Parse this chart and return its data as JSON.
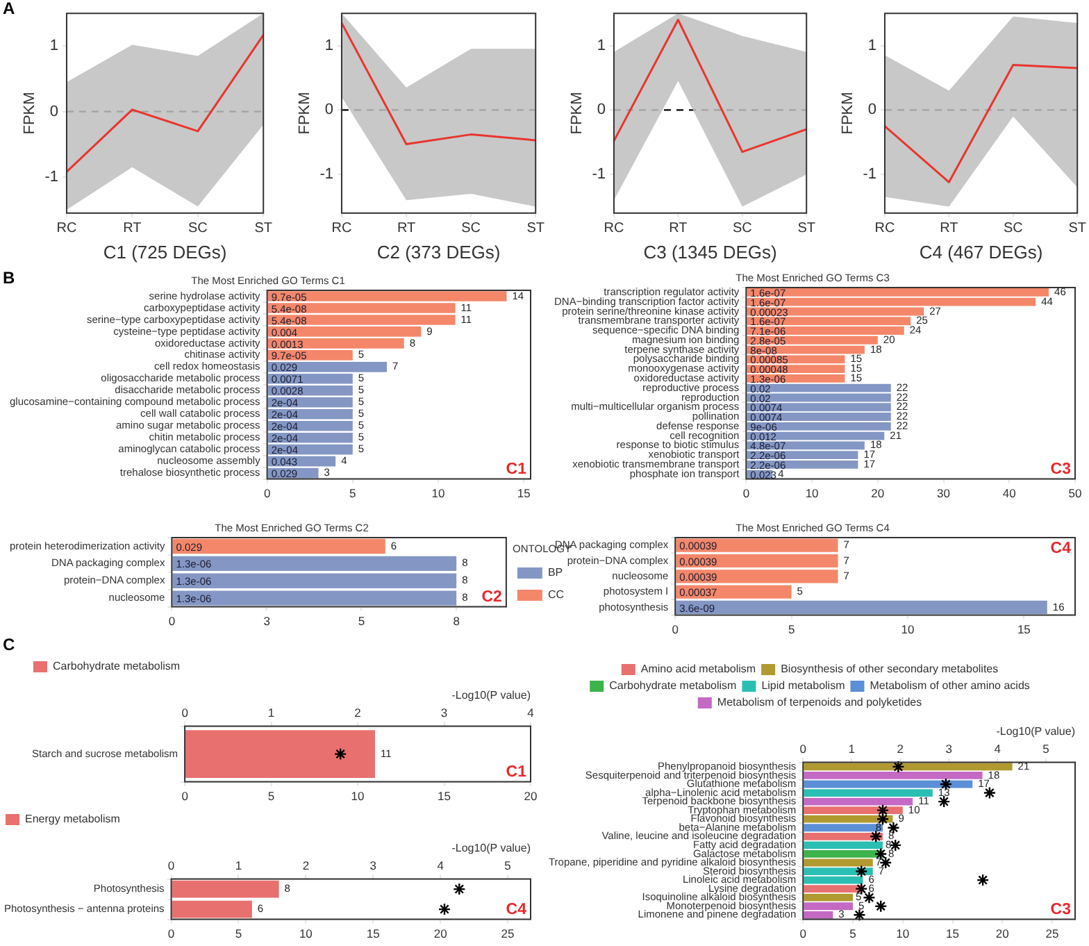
{
  "chart_data": [
    {
      "type": "line",
      "xlabel": "C1 (725 DEGs)",
      "ylabel": "FPKM",
      "categories": [
        "RC",
        "RT",
        "SC",
        "ST"
      ],
      "ylim": [
        -1.55,
        1.5
      ],
      "yticks": [
        -1,
        0,
        1
      ],
      "annotations": [
        "A"
      ],
      "ref_lines": [
        {
          "axis": "y",
          "value": 0,
          "line_style": "dashed",
          "color": "#000000"
        }
      ],
      "series": [
        {
          "color": "#e8352e",
          "values": [
            -0.92,
            0.03,
            -0.3,
            1.17
          ],
          "lower": [
            -1.5,
            -0.85,
            -1.45,
            -0.2
          ],
          "upper": [
            0.45,
            1.02,
            0.85,
            1.5
          ]
        }
      ]
    },
    {
      "type": "line",
      "xlabel": "C2 (373 DEGs)",
      "ylabel": "FPKM",
      "categories": [
        "RC",
        "RT",
        "SC",
        "ST"
      ],
      "ylim": [
        -1.6,
        1.5
      ],
      "yticks": [
        -1,
        0,
        1
      ],
      "ref_lines": [
        {
          "axis": "y",
          "value": 0,
          "line_style": "dashed",
          "color": "#000000"
        }
      ],
      "series": [
        {
          "color": "#e8352e",
          "values": [
            1.35,
            -0.53,
            -0.38,
            -0.47
          ],
          "lower": [
            0.2,
            -1.4,
            -1.3,
            -1.5
          ],
          "upper": [
            1.5,
            0.35,
            0.95,
            0.95
          ]
        }
      ]
    },
    {
      "type": "line",
      "xlabel": "C3 (1345 DEGs)",
      "ylabel": "FPKM",
      "categories": [
        "RC",
        "RT",
        "SC",
        "ST"
      ],
      "ylim": [
        -1.6,
        1.5
      ],
      "yticks": [
        -1,
        0,
        1
      ],
      "ref_lines": [
        {
          "axis": "y",
          "value": 0,
          "line_style": "dashed",
          "color": "#000000"
        }
      ],
      "series": [
        {
          "color": "#e8352e",
          "values": [
            -0.48,
            1.4,
            -0.65,
            -0.3
          ],
          "lower": [
            -1.4,
            0.45,
            -1.5,
            -1.0
          ],
          "upper": [
            0.9,
            1.5,
            1.15,
            0.9
          ]
        }
      ]
    },
    {
      "type": "line",
      "xlabel": "C4 (467 DEGs)",
      "ylabel": "FPKM",
      "categories": [
        "RC",
        "RT",
        "SC",
        "ST"
      ],
      "ylim": [
        -1.6,
        1.5
      ],
      "yticks": [
        -1,
        0,
        1
      ],
      "ref_lines": [
        {
          "axis": "y",
          "value": 0,
          "line_style": "dashed",
          "color": "#000000"
        }
      ],
      "series": [
        {
          "color": "#e8352e",
          "values": [
            -0.25,
            -1.12,
            0.7,
            0.65
          ],
          "lower": [
            -1.35,
            -1.5,
            -0.1,
            -1.2
          ],
          "upper": [
            0.85,
            0.3,
            1.45,
            1.35
          ]
        }
      ]
    },
    {
      "type": "bar",
      "orientation": "horizontal",
      "title": "The Most Enriched GO Terms C1",
      "data_labels": true,
      "xlim": [
        0,
        15.4
      ],
      "xticks": [
        0,
        5,
        10,
        15
      ],
      "categories": [
        "serine hydrolase activity",
        "carboxypeptidase activity",
        "serine−type carboxypeptidase activity",
        "cysteine−type peptidase activity",
        "oxidoreductase activity",
        "chitinase activity",
        "cell redox homeostasis",
        "oligosaccharide metabolic process",
        "disaccharide metabolic process",
        "glucosamine−containing compound metabolic process",
        "cell wall catabolic process",
        "amino sugar metabolic process",
        "chitin metabolic process",
        "aminoglycan catabolic process",
        "nucleosome assembly",
        "trehalose biosynthetic process"
      ],
      "series": [
        {
          "color": "#8497c4",
          "values": [
            null,
            null,
            null,
            null,
            null,
            null,
            7,
            5,
            5,
            5,
            5,
            5,
            5,
            5,
            4,
            3
          ]
        },
        {
          "color": "#f4876a",
          "values": [
            14,
            11,
            11,
            9,
            8,
            5,
            null,
            null,
            null,
            null,
            null,
            null,
            null,
            null,
            null,
            null
          ]
        }
      ],
      "annotations": [
        "B",
        "C1",
        "9.7e-05",
        "5.4e-08",
        "5.4e-08",
        "0.004",
        "0.0013",
        "9.7e-05",
        "0.029",
        "0.0071",
        "0.0028",
        "2e-04",
        "2e-04",
        "2e-04",
        "2e-04",
        "2e-04",
        "0.043",
        "0.029"
      ]
    },
    {
      "type": "bar",
      "orientation": "horizontal",
      "title": "The Most Enriched GO Terms C3",
      "data_labels": true,
      "xlim": [
        0,
        50
      ],
      "xticks": [
        0,
        10,
        20,
        30,
        40,
        50
      ],
      "categories": [
        "transcription regulator activity",
        "DNA−binding transcription factor activity",
        "protein serine/threonine kinase activity",
        "transmembrane transporter activity",
        "sequence−specific DNA binding",
        "magnesium ion binding",
        "terpene synthase activity",
        "polysaccharide binding",
        "monooxygenase activity",
        "oxidoreductase activity",
        "reproductive process",
        "reproduction",
        "multi−multicellular organism process",
        "pollination",
        "defense response",
        "cell recognition",
        "response to biotic stimulus",
        "xenobiotic transport",
        "xenobiotic transmembrane transport",
        "phosphate ion transport"
      ],
      "series": [
        {
          "color": "#8497c4",
          "values": [
            null,
            null,
            null,
            null,
            null,
            null,
            null,
            null,
            null,
            null,
            22,
            22,
            22,
            22,
            22,
            21,
            18,
            17,
            17,
            4
          ]
        },
        {
          "color": "#f4876a",
          "values": [
            46,
            44,
            27,
            25,
            24,
            20,
            18,
            15,
            15,
            15,
            null,
            null,
            null,
            null,
            null,
            null,
            null,
            null,
            null,
            null
          ]
        }
      ],
      "annotations": [
        "C3",
        "1.6e-07",
        "1.6e-07",
        "0.00023",
        "1.6e-07",
        "7.1e-06",
        "2.8e-05",
        "8e-08",
        "0.00085",
        "0.00048",
        "1.3e-06",
        "0.02",
        "0.02",
        "0.0074",
        "0.0074",
        "9e-06",
        "0.012",
        "4.8e-07",
        "2.2e-06",
        "2.2e-06",
        "0.023"
      ]
    },
    {
      "type": "bar",
      "orientation": "horizontal",
      "title": "The Most Enriched GO Terms C2",
      "data_labels": true,
      "xlim": [
        0,
        9.4
      ],
      "xticks": [
        0,
        {
          "value": 2.67,
          "label": "3"
        },
        {
          "value": 5.33,
          "label": "5"
        },
        8
      ],
      "legend": "right",
      "legend_title": "ONTOLOGY",
      "categories": [
        "protein heterodimerization activity",
        "DNA packaging complex",
        "protein−DNA complex",
        "nucleosome"
      ],
      "series": [
        {
          "name": "BP",
          "color": "#8497c4",
          "values": [
            null,
            8,
            8,
            8
          ]
        },
        {
          "name": "CC",
          "color": "#f4876a",
          "values": [
            6,
            null,
            null,
            null
          ]
        }
      ],
      "annotations": [
        "C2",
        "0.029",
        "1.3e-06",
        "1.3e-06",
        "1.3e-06"
      ]
    },
    {
      "type": "bar",
      "orientation": "horizontal",
      "title": "The Most Enriched GO Terms C4",
      "data_labels": true,
      "xlim": [
        0,
        17.2
      ],
      "xticks": [
        0,
        5,
        10,
        15
      ],
      "categories": [
        "DNA packaging complex",
        "protein−DNA complex",
        "nucleosome",
        "photosystem I",
        "photosynthesis"
      ],
      "series": [
        {
          "color": "#8497c4",
          "values": [
            null,
            null,
            null,
            null,
            16
          ]
        },
        {
          "color": "#f4876a",
          "values": [
            7,
            7,
            7,
            5,
            null
          ]
        }
      ],
      "annotations": [
        "C4",
        "0.00039",
        "0.00039",
        "0.00039",
        "0.00037",
        "3.6e-09"
      ]
    },
    {
      "type": "bar",
      "orientation": "horizontal",
      "legend": "top left",
      "xlim": [
        0,
        20
      ],
      "xticks": [
        0,
        5,
        10,
        15,
        20
      ],
      "x2lim": [
        0,
        4
      ],
      "x2ticks": [
        0,
        1,
        2,
        3,
        4
      ],
      "x2label": "-Log10(P value)",
      "annotations": [
        "C",
        "C1"
      ],
      "categories": [
        "Starch and sucrose metabolism"
      ],
      "series": [
        {
          "name": "Carbohydrate metabolism",
          "color": "#e8706f",
          "values": [
            11
          ],
          "value_labels": [
            "11"
          ]
        },
        {
          "type": "scatter",
          "axis": "x2",
          "marker": "cross",
          "color": "#000000",
          "values": [
            1.8
          ]
        }
      ]
    },
    {
      "type": "bar",
      "orientation": "horizontal",
      "legend": "top left",
      "xlim": [
        0,
        26.7
      ],
      "xticks": [
        0,
        5,
        10,
        15,
        20,
        25
      ],
      "x2lim": [
        0,
        5.34
      ],
      "x2ticks": [
        0,
        1,
        2,
        3,
        4,
        5
      ],
      "x2label": "-Log10(P value)",
      "annotations": [
        "C4"
      ],
      "categories": [
        "Photosynthesis",
        "Photosynthesis − antenna proteins"
      ],
      "series": [
        {
          "name": "Energy metabolism",
          "color": "#e8706f",
          "values": [
            8,
            6
          ],
          "value_labels": [
            "8",
            "6"
          ]
        },
        {
          "type": "scatter",
          "axis": "x2",
          "marker": "cross",
          "color": "#000000",
          "values": [
            4.28,
            4.06
          ]
        }
      ]
    },
    {
      "type": "bar",
      "orientation": "horizontal",
      "legend": "top",
      "xlim": [
        0,
        27.3
      ],
      "xticks": [
        0,
        5,
        10,
        15,
        20,
        25
      ],
      "x2lim": [
        0,
        5.6
      ],
      "x2ticks": [
        0,
        1,
        2,
        3,
        4,
        5
      ],
      "x2label": "-Log10(P value)",
      "annotations": [
        "C3"
      ],
      "categories": [
        "Phenylpropanoid biosynthesis",
        "Sesquiterpenoid and triterpenoid biosynthesis",
        "Glutathione metabolism",
        "alpha−Linolenic acid metabolism",
        "Terpenoid backbone biosynthesis",
        "Tryptophan metabolism",
        "Flavonoid biosynthesis",
        "beta−Alanine metabolism",
        "Valine, leucine and isoleucine degradation",
        "Fatty acid degradation",
        "Galactose metabolism",
        "Tropane, piperidine and pyridine alkaloid biosynthesis",
        "Steroid biosynthesis",
        "Linoleic acid metabolism",
        "Lysine degradation",
        "Isoquinoline alkaloid biosynthesis",
        "Monoterpenoid biosynthesis",
        "Limonene and pinene degradation"
      ],
      "series": [
        {
          "name": "Amino acid metabolism",
          "color": "#e8706f",
          "values": [
            null,
            null,
            null,
            null,
            null,
            10,
            null,
            null,
            8,
            null,
            null,
            null,
            null,
            null,
            6,
            null,
            null,
            null
          ],
          "value_labels": [
            null,
            null,
            null,
            null,
            null,
            "10",
            null,
            null,
            "8",
            null,
            null,
            null,
            null,
            null,
            "6",
            null,
            null,
            null
          ]
        },
        {
          "name": "Biosynthesis of other secondary metabolites",
          "color": "#b09a30",
          "values": [
            21,
            null,
            null,
            null,
            null,
            null,
            9,
            null,
            null,
            null,
            null,
            7,
            null,
            null,
            null,
            5,
            null,
            null
          ],
          "value_labels": [
            "21",
            null,
            null,
            null,
            null,
            null,
            "9",
            null,
            null,
            null,
            null,
            "7",
            null,
            null,
            null,
            "5",
            null,
            null
          ]
        },
        {
          "name": "Carbohydrate metabolism",
          "color": "#3cb44b",
          "values": [
            null,
            null,
            null,
            null,
            null,
            null,
            null,
            null,
            null,
            null,
            8,
            null,
            null,
            null,
            null,
            null,
            null,
            null
          ],
          "value_labels": [
            null,
            null,
            null,
            null,
            null,
            null,
            null,
            null,
            null,
            null,
            "8",
            null,
            null,
            null,
            null,
            null,
            null,
            null
          ]
        },
        {
          "name": "Lipid metabolism",
          "color": "#2bbfb3",
          "values": [
            null,
            null,
            null,
            13,
            null,
            null,
            null,
            null,
            null,
            8,
            null,
            null,
            7,
            6,
            null,
            null,
            null,
            null
          ],
          "value_labels": [
            null,
            null,
            null,
            "13",
            null,
            null,
            null,
            null,
            null,
            "8",
            null,
            null,
            "7",
            "6",
            null,
            null,
            null,
            null
          ]
        },
        {
          "name": "Metabolism of other amino acids",
          "color": "#5b8fd6",
          "values": [
            null,
            null,
            17,
            null,
            null,
            null,
            null,
            8,
            null,
            null,
            null,
            null,
            null,
            null,
            null,
            null,
            null,
            null
          ],
          "value_labels": [
            null,
            null,
            "17",
            null,
            null,
            null,
            null,
            "8",
            null,
            null,
            null,
            null,
            null,
            null,
            null,
            null,
            null,
            null
          ]
        },
        {
          "name": "Metabolism of terpenoids and polyketides",
          "color": "#c469c4",
          "values": [
            null,
            18,
            null,
            null,
            11,
            null,
            null,
            null,
            null,
            null,
            null,
            null,
            null,
            null,
            null,
            null,
            5,
            3
          ],
          "value_labels": [
            null,
            "18",
            null,
            null,
            "11",
            null,
            null,
            null,
            null,
            null,
            null,
            null,
            null,
            null,
            null,
            null,
            "5",
            "3"
          ]
        },
        {
          "type": "scatter",
          "axis": "x2",
          "marker": "cross",
          "color": "#000000",
          "values": [
            1.96,
            null,
            2.94,
            3.84,
            2.9,
            1.64,
            1.64,
            1.86,
            1.5,
            1.9,
            1.6,
            1.7,
            1.2,
            3.7,
            1.2,
            1.36,
            1.6,
            1.16
          ]
        }
      ]
    }
  ]
}
